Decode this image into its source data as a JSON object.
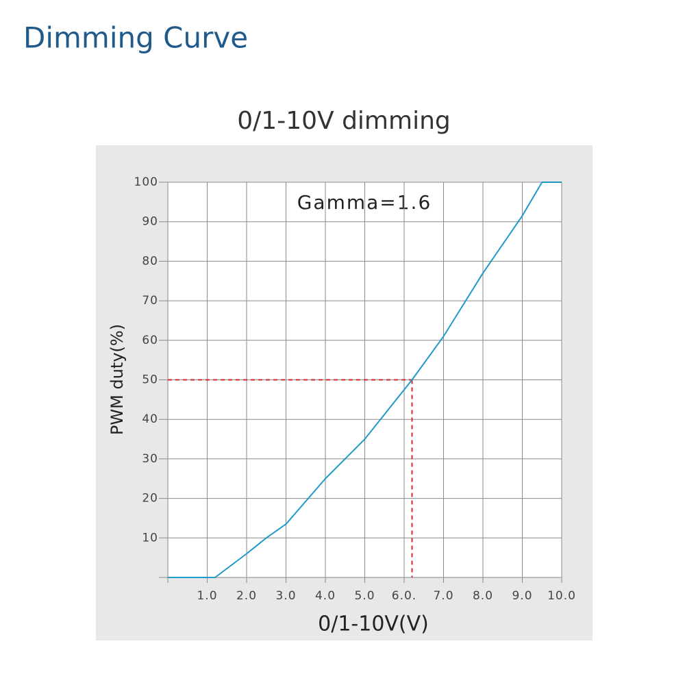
{
  "header": {
    "title": "Dimming Curve"
  },
  "chart_data": {
    "type": "line",
    "title": "0/1-10V dimming",
    "annotation": "Gamma=1.6",
    "xlabel": "0/1-10V(V)",
    "ylabel": "PWM duty(%)",
    "xlim": [
      0,
      10
    ],
    "ylim": [
      0,
      100
    ],
    "xticks": [
      {
        "value": 1,
        "label": "1.0"
      },
      {
        "value": 2,
        "label": "2.0"
      },
      {
        "value": 3,
        "label": "3.0"
      },
      {
        "value": 4,
        "label": "4.0"
      },
      {
        "value": 5,
        "label": "5.0"
      },
      {
        "value": 6,
        "label": "6.0."
      },
      {
        "value": 7,
        "label": "7.0"
      },
      {
        "value": 8,
        "label": "8.0"
      },
      {
        "value": 9,
        "label": "9.0"
      },
      {
        "value": 10,
        "label": "10.0"
      }
    ],
    "yticks": [
      10,
      20,
      30,
      40,
      50,
      60,
      70,
      80,
      90,
      100
    ],
    "grid": true,
    "series": [
      {
        "color": "#1e9ac9",
        "x": [
          0,
          1.2,
          2,
          2.5,
          3,
          4,
          5,
          6.2,
          7,
          8,
          9,
          9.5,
          10
        ],
        "values": [
          0,
          0,
          6,
          10,
          13.5,
          25,
          35,
          50,
          61,
          77,
          91.5,
          100,
          100
        ]
      }
    ],
    "reference": {
      "x": 6.2,
      "y": 50,
      "color": "#d9262a"
    }
  }
}
